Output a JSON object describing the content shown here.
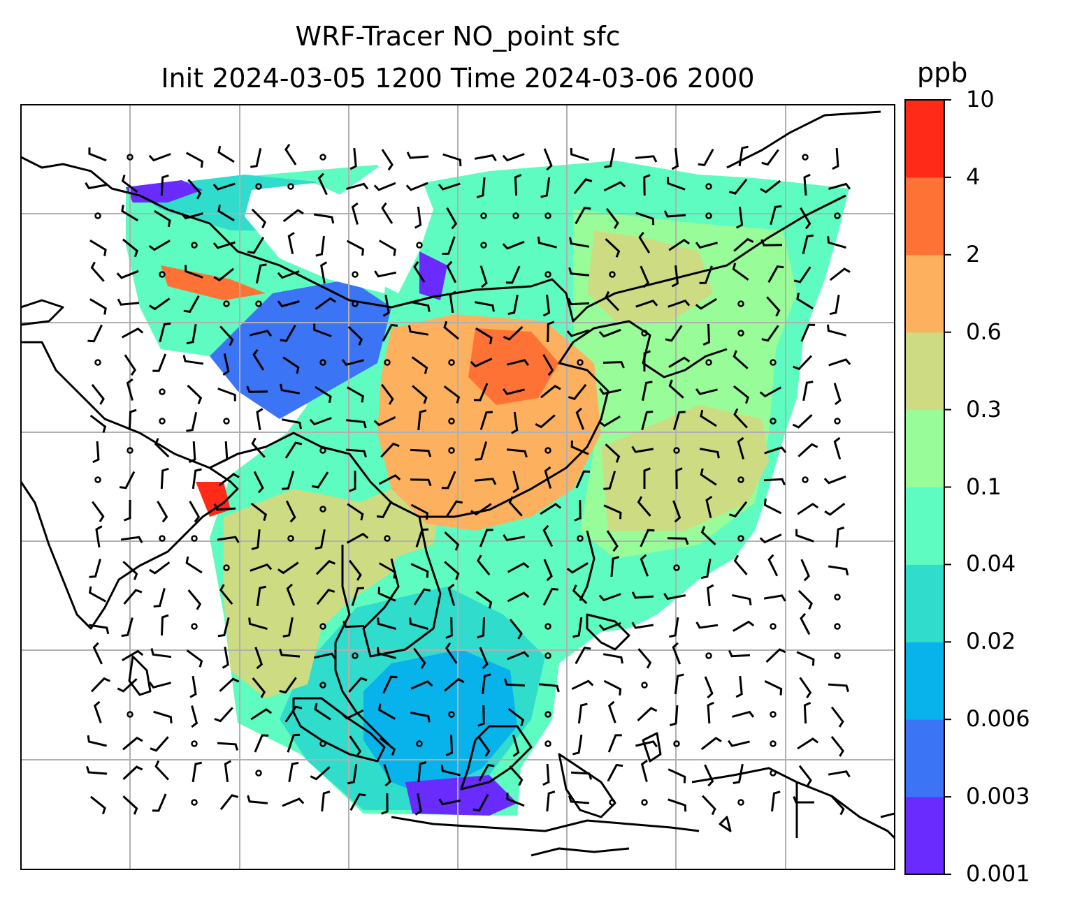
{
  "title": {
    "line1": "WRF-Tracer NO_point sfc",
    "line2": "Init 2024-03-05 1200 Time 2024-03-06 2000"
  },
  "colorbar": {
    "unit": "ppb",
    "levels": [
      "0.001",
      "0.003",
      "0.006",
      "0.02",
      "0.04",
      "0.1",
      "0.3",
      "0.6",
      "2",
      "4",
      "10"
    ],
    "colors": [
      "#6a2bff",
      "#3b74f5",
      "#08b2ea",
      "#30dccc",
      "#5efcc0",
      "#98fc98",
      "#cddc82",
      "#fdb05e",
      "#ff7236",
      "#ff2a18"
    ]
  },
  "map": {
    "field": "NO_point tracer concentration",
    "overlays": [
      "wind-barbs",
      "coastlines",
      "country-borders",
      "lat-lon-grid"
    ],
    "grid": true
  }
}
